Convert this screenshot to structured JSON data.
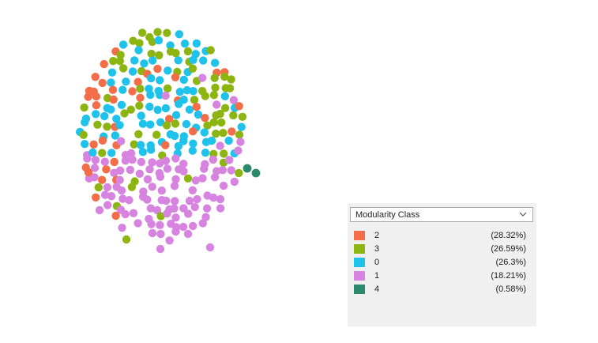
{
  "partition": {
    "selector_value": "Modularity Class",
    "classes": [
      {
        "label": "2",
        "percent": "(28.32%)",
        "color": "#f26d48"
      },
      {
        "label": "3",
        "percent": "(26.59%)",
        "color": "#8db512"
      },
      {
        "label": "0",
        "percent": "(26.3%)",
        "color": "#1ec2ea"
      },
      {
        "label": "1",
        "percent": "(18.21%)",
        "color": "#d684e0"
      },
      {
        "label": "4",
        "percent": "(0.58%)",
        "color": "#2b8a6b"
      }
    ]
  }
}
